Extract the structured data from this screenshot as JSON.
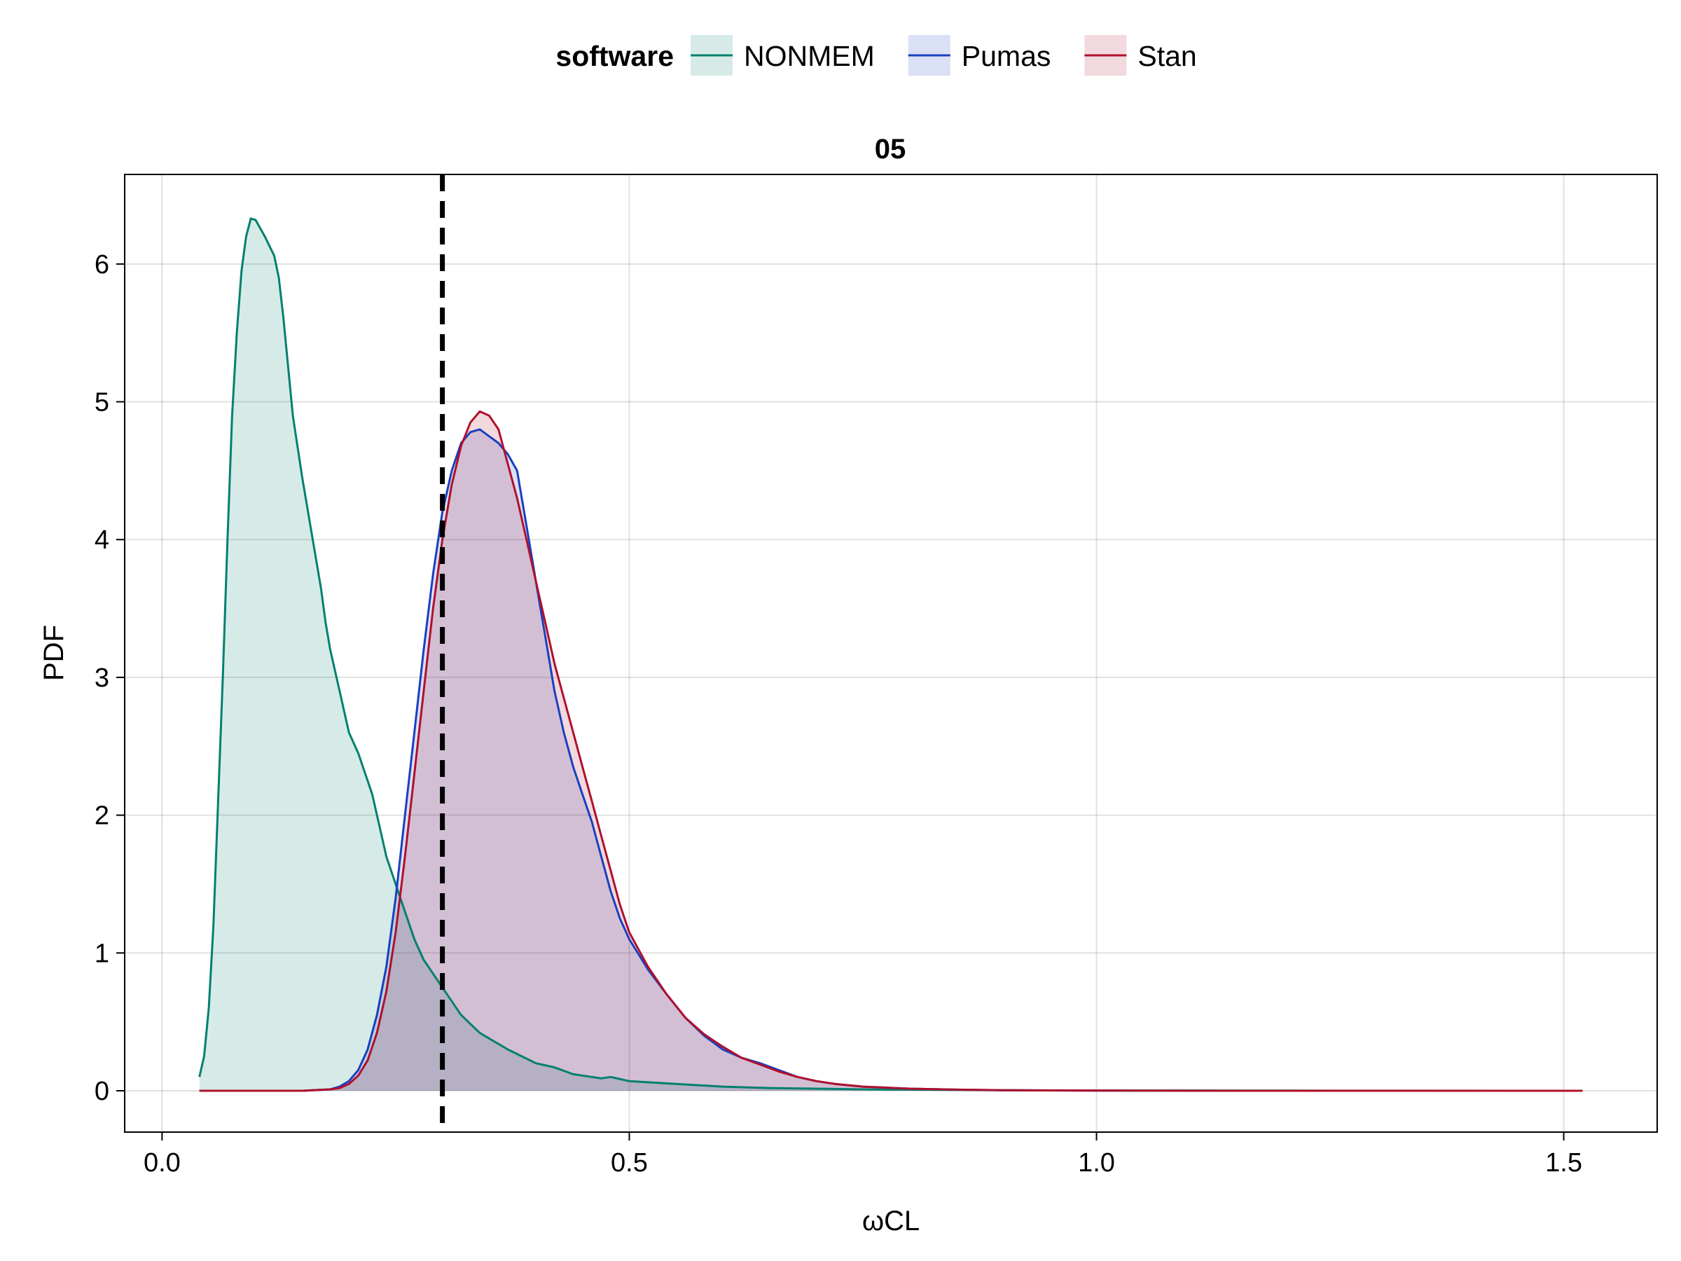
{
  "chart_data": {
    "type": "area",
    "title": "05",
    "xlabel": "ωCL",
    "ylabel": "PDF",
    "xlim": [
      -0.04,
      1.6
    ],
    "ylim": [
      -0.3,
      6.65
    ],
    "xticks": [
      0.0,
      0.5,
      1.0,
      1.5
    ],
    "xtick_labels": [
      "0.0",
      "0.5",
      "1.0",
      "1.5"
    ],
    "yticks": [
      0,
      1,
      2,
      3,
      4,
      5,
      6
    ],
    "ytick_labels": [
      "0",
      "1",
      "2",
      "3",
      "4",
      "5",
      "6"
    ],
    "grid": true,
    "legend": {
      "title": "software",
      "placement": "top-center"
    },
    "reference_line": {
      "x": 0.3,
      "style": "dashed",
      "color": "#000000"
    },
    "series": [
      {
        "name": "NONMEM",
        "color": "#00806e",
        "fill": "#d6ece8",
        "x": [
          0.04,
          0.045,
          0.05,
          0.055,
          0.06,
          0.065,
          0.07,
          0.075,
          0.08,
          0.085,
          0.09,
          0.095,
          0.1,
          0.105,
          0.11,
          0.115,
          0.12,
          0.125,
          0.13,
          0.14,
          0.15,
          0.155,
          0.16,
          0.165,
          0.17,
          0.175,
          0.18,
          0.19,
          0.2,
          0.21,
          0.215,
          0.22,
          0.225,
          0.23,
          0.24,
          0.25,
          0.26,
          0.27,
          0.28,
          0.29,
          0.3,
          0.32,
          0.34,
          0.35,
          0.37,
          0.4,
          0.42,
          0.44,
          0.46,
          0.47,
          0.48,
          0.5,
          0.55,
          0.6,
          0.65,
          0.7,
          0.75,
          0.8,
          0.9,
          1.0,
          1.2,
          1.52
        ],
        "y": [
          0.1,
          0.25,
          0.6,
          1.2,
          2.1,
          3.0,
          4.0,
          4.9,
          5.5,
          5.95,
          6.2,
          6.33,
          6.32,
          6.26,
          6.2,
          6.13,
          6.06,
          5.9,
          5.6,
          4.9,
          4.45,
          4.25,
          4.05,
          3.85,
          3.65,
          3.4,
          3.2,
          2.9,
          2.6,
          2.45,
          2.35,
          2.25,
          2.15,
          2.0,
          1.7,
          1.5,
          1.3,
          1.1,
          0.95,
          0.85,
          0.75,
          0.55,
          0.42,
          0.38,
          0.3,
          0.2,
          0.17,
          0.12,
          0.1,
          0.09,
          0.1,
          0.07,
          0.05,
          0.03,
          0.02,
          0.015,
          0.01,
          0.008,
          0.004,
          0.002,
          0.001,
          0.0
        ]
      },
      {
        "name": "Pumas",
        "color": "#1a3fbf",
        "fill": "#d7dff3",
        "x": [
          0.04,
          0.1,
          0.15,
          0.18,
          0.19,
          0.2,
          0.21,
          0.22,
          0.23,
          0.24,
          0.25,
          0.26,
          0.27,
          0.28,
          0.29,
          0.3,
          0.31,
          0.32,
          0.33,
          0.34,
          0.35,
          0.36,
          0.37,
          0.38,
          0.39,
          0.4,
          0.41,
          0.42,
          0.43,
          0.44,
          0.45,
          0.46,
          0.47,
          0.48,
          0.49,
          0.5,
          0.52,
          0.54,
          0.56,
          0.58,
          0.6,
          0.62,
          0.64,
          0.66,
          0.68,
          0.7,
          0.72,
          0.75,
          0.8,
          0.85,
          0.9,
          1.0,
          1.2,
          1.52
        ],
        "y": [
          0.0,
          0.0,
          0.0,
          0.01,
          0.03,
          0.07,
          0.15,
          0.3,
          0.55,
          0.9,
          1.4,
          2.0,
          2.6,
          3.2,
          3.75,
          4.2,
          4.5,
          4.7,
          4.78,
          4.8,
          4.75,
          4.7,
          4.62,
          4.5,
          4.1,
          3.7,
          3.3,
          2.9,
          2.6,
          2.35,
          2.15,
          1.95,
          1.7,
          1.45,
          1.25,
          1.1,
          0.88,
          0.7,
          0.53,
          0.4,
          0.3,
          0.24,
          0.2,
          0.15,
          0.1,
          0.07,
          0.05,
          0.03,
          0.015,
          0.008,
          0.004,
          0.001,
          0.0,
          0.0
        ]
      },
      {
        "name": "Stan",
        "color": "#b0102c",
        "fill": "#f6d5da",
        "x": [
          0.04,
          0.1,
          0.15,
          0.18,
          0.19,
          0.2,
          0.21,
          0.22,
          0.23,
          0.24,
          0.25,
          0.26,
          0.27,
          0.28,
          0.29,
          0.3,
          0.31,
          0.32,
          0.33,
          0.34,
          0.35,
          0.36,
          0.37,
          0.38,
          0.39,
          0.4,
          0.41,
          0.42,
          0.43,
          0.44,
          0.45,
          0.46,
          0.47,
          0.48,
          0.49,
          0.5,
          0.52,
          0.54,
          0.56,
          0.58,
          0.6,
          0.62,
          0.64,
          0.66,
          0.68,
          0.7,
          0.72,
          0.75,
          0.8,
          0.85,
          0.9,
          1.0,
          1.2,
          1.52
        ],
        "y": [
          0.0,
          0.0,
          0.0,
          0.01,
          0.02,
          0.05,
          0.11,
          0.22,
          0.42,
          0.72,
          1.15,
          1.7,
          2.3,
          2.9,
          3.5,
          4.0,
          4.4,
          4.68,
          4.85,
          4.93,
          4.9,
          4.8,
          4.55,
          4.3,
          4.0,
          3.7,
          3.4,
          3.1,
          2.85,
          2.6,
          2.35,
          2.1,
          1.85,
          1.6,
          1.35,
          1.15,
          0.9,
          0.7,
          0.53,
          0.41,
          0.32,
          0.24,
          0.19,
          0.14,
          0.1,
          0.07,
          0.05,
          0.03,
          0.015,
          0.008,
          0.004,
          0.001,
          0.0,
          0.0
        ]
      }
    ]
  }
}
